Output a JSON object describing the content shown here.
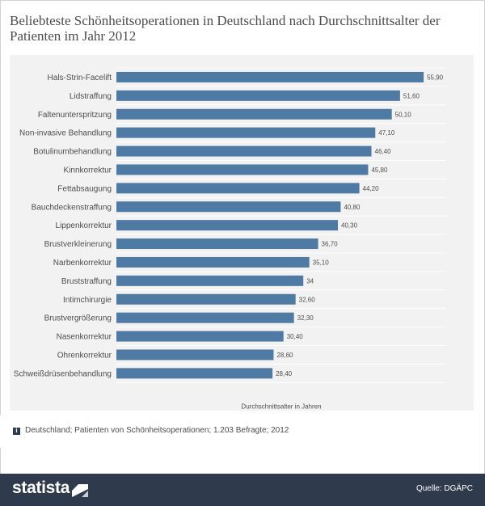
{
  "title": "Beliebteste Schönheitsoperationen in Deutschland nach Durchschnittsalter der Patienten im Jahr 2012",
  "note": "Deutschland; Patienten von Schönheitsoperationen; 1.203 Befragte; 2012",
  "note_icon": "i",
  "brand": "statista",
  "source": "Quelle: DGÄPC",
  "colors": {
    "bar": "#4f7aa3",
    "panel": "#f2f2f2",
    "grid": "#ffffff",
    "footer": "#2f3a4c",
    "text": "#4d4d4d"
  },
  "chart_data": {
    "type": "bar",
    "orientation": "horizontal",
    "title": "Beliebteste Schönheitsoperationen in Deutschland nach Durchschnittsalter der Patienten im Jahr 2012",
    "xlabel": "Durchschnittsalter in Jahren",
    "ylabel": "",
    "xlim": [
      0,
      60
    ],
    "grid": true,
    "categories": [
      "Hals-Strin-Facelift",
      "Lidstraffung",
      "Faltenunterspritzung",
      "Non-invasive Behandlung",
      "Botulinumbehandlung",
      "Kinnkorrektur",
      "Fettabsaugung",
      "Bauchdeckenstraffung",
      "Lippenkorrektur",
      "Brustverkleinerung",
      "Narbenkorrektur",
      "Bruststraffung",
      "Intimchirurgie",
      "Brustvergrößerung",
      "Nasenkorrektur",
      "Ohrenkorrektur",
      "Schweißdrüsenbehandlung"
    ],
    "values": [
      55.9,
      51.6,
      50.1,
      47.1,
      46.4,
      45.8,
      44.2,
      40.8,
      40.3,
      36.7,
      35.1,
      34,
      32.6,
      32.3,
      30.4,
      28.6,
      28.4
    ],
    "value_labels": [
      "55,90",
      "51,60",
      "50,10",
      "47,10",
      "46,40",
      "45,80",
      "44,20",
      "40,80",
      "40,30",
      "36,70",
      "35,10",
      "34",
      "32,60",
      "32,30",
      "30,40",
      "28,60",
      "28,40"
    ]
  }
}
